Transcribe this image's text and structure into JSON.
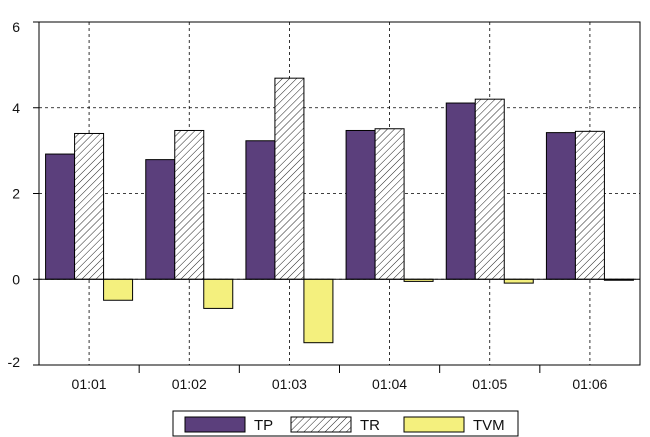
{
  "chart_data": {
    "type": "bar",
    "categories": [
      "01:01",
      "01:02",
      "01:03",
      "01:04",
      "01:05",
      "01:06"
    ],
    "series": [
      {
        "name": "TP",
        "values": [
          2.92,
          2.79,
          3.23,
          3.47,
          4.11,
          3.42
        ],
        "fill": "#5b3f7c",
        "pattern": "solid"
      },
      {
        "name": "TR",
        "values": [
          3.4,
          3.47,
          4.69,
          3.51,
          4.2,
          3.45
        ],
        "fill": "#ffffff",
        "pattern": "diagonal-hatch"
      },
      {
        "name": "TVM",
        "values": [
          -0.49,
          -0.68,
          -1.48,
          -0.05,
          -0.09,
          -0.02
        ],
        "fill": "#f4f07e",
        "pattern": "solid"
      }
    ],
    "yticks": [
      6,
      4,
      2,
      0,
      -2
    ],
    "ylim": [
      -2,
      6
    ],
    "grid": true,
    "legend_position": "bottom"
  }
}
